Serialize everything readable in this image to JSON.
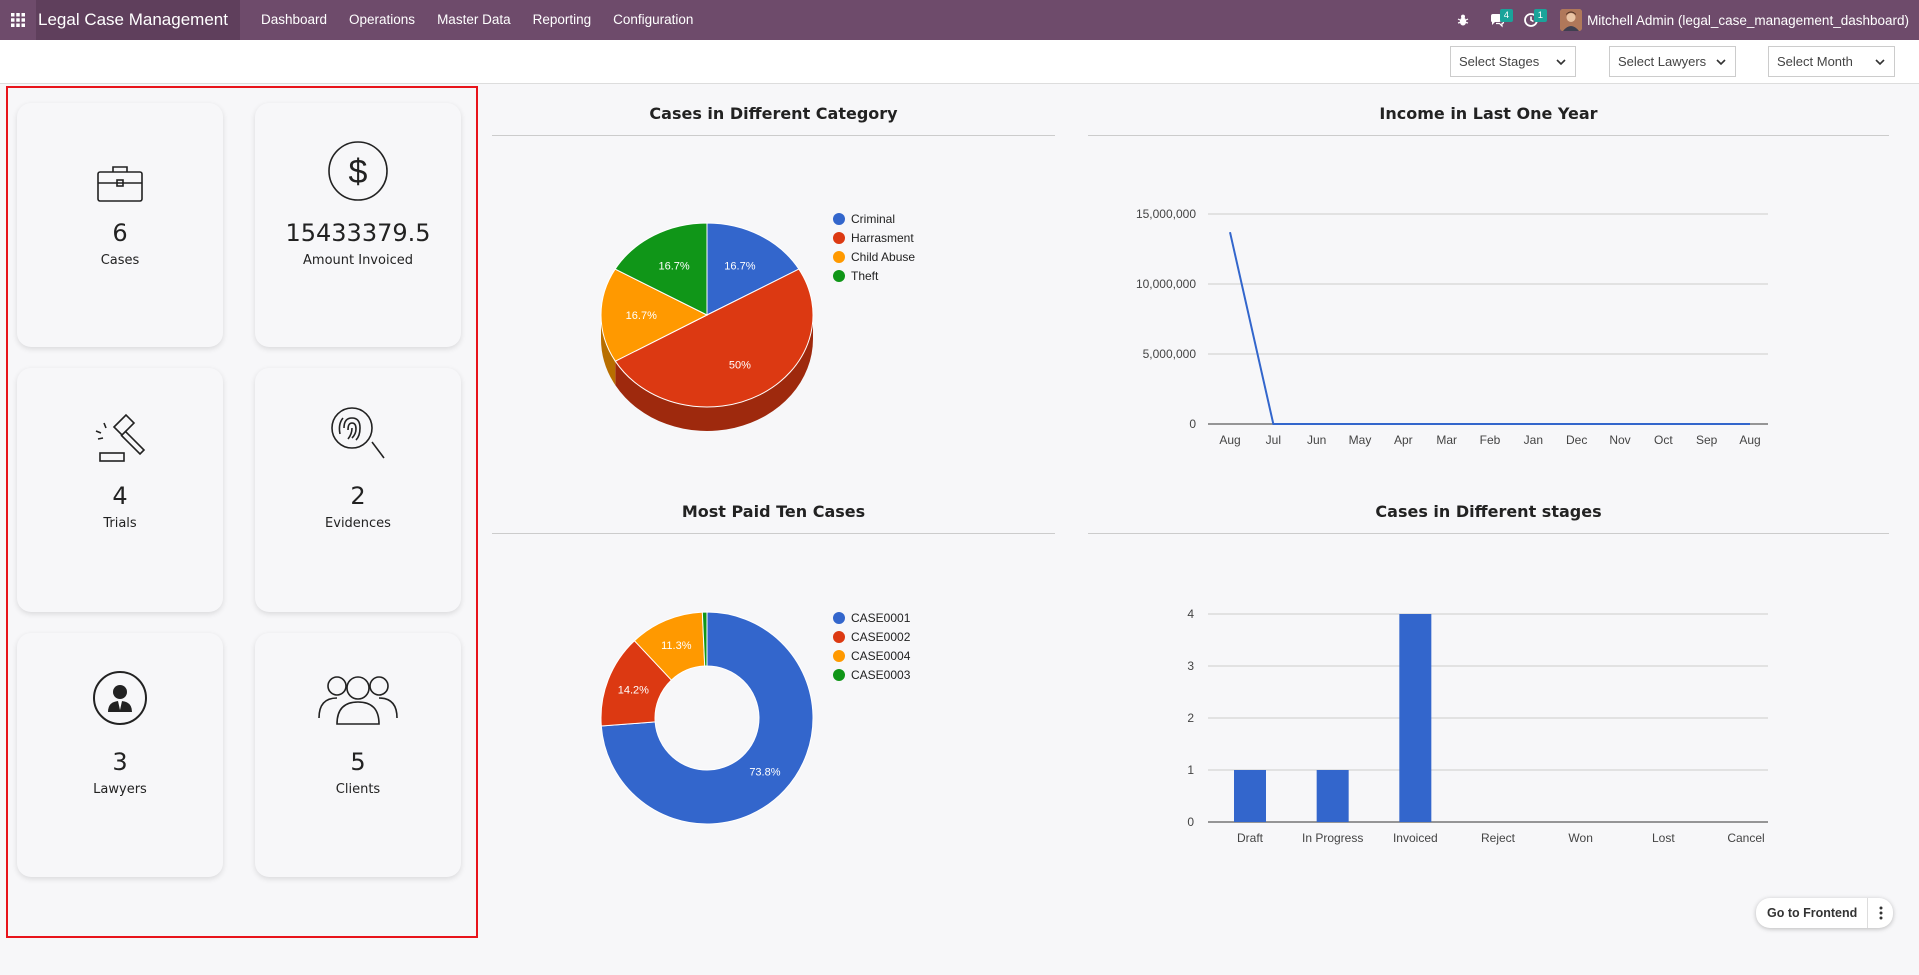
{
  "navbar": {
    "app_title": "Legal Case Management",
    "menu": [
      "Dashboard",
      "Operations",
      "Master Data",
      "Reporting",
      "Configuration"
    ],
    "messages_count": "4",
    "activities_count": "1",
    "user_name": "Mitchell Admin (legal_case_management_dashboard)"
  },
  "filters": {
    "stages": "Select Stages",
    "lawyers": "Select Lawyers",
    "month": "Select Month"
  },
  "kpis": [
    {
      "value": "6",
      "label": "Cases",
      "icon": "briefcase-icon"
    },
    {
      "value": "15433379.5",
      "label": "Amount Invoiced",
      "icon": "dollar-icon"
    },
    {
      "value": "4",
      "label": "Trials",
      "icon": "gavel-icon"
    },
    {
      "value": "2",
      "label": "Evidences",
      "icon": "fingerprint-icon"
    },
    {
      "value": "3",
      "label": "Lawyers",
      "icon": "lawyer-icon"
    },
    {
      "value": "5",
      "label": "Clients",
      "icon": "clients-icon"
    }
  ],
  "go_frontend": "Go to Frontend",
  "chart_data": [
    {
      "type": "pie",
      "title": "Cases in Different Category",
      "labels": [
        "Criminal",
        "Harrasment",
        "Child Abuse",
        "Theft"
      ],
      "values": [
        16.7,
        50,
        16.7,
        16.7
      ],
      "value_labels": [
        "16.7%",
        "50%",
        "16.7%",
        "16.7%"
      ],
      "colors": [
        "#3366cc",
        "#dc3912",
        "#ff9900",
        "#109618"
      ],
      "style": "3d",
      "legend": "right"
    },
    {
      "type": "line",
      "title": "Income in Last One Year",
      "categories": [
        "Aug",
        "Jul",
        "Jun",
        "May",
        "Apr",
        "Mar",
        "Feb",
        "Jan",
        "Dec",
        "Nov",
        "Oct",
        "Sep",
        "Aug"
      ],
      "values": [
        13700000,
        0,
        0,
        0,
        0,
        0,
        0,
        0,
        0,
        0,
        0,
        0,
        0
      ],
      "yticks": [
        "0",
        "5,000,000",
        "10,000,000",
        "15,000,000"
      ],
      "ylim": [
        0,
        15000000
      ],
      "color": "#3366cc",
      "grid": true
    },
    {
      "type": "pie",
      "title": "Most Paid Ten Cases",
      "labels": [
        "CASE0001",
        "CASE0002",
        "CASE0004",
        "CASE0003"
      ],
      "values": [
        73.8,
        14.2,
        11.3,
        0.7
      ],
      "value_labels": [
        "73.8%",
        "14.2%",
        "11.3%",
        ""
      ],
      "colors": [
        "#3366cc",
        "#dc3912",
        "#ff9900",
        "#109618"
      ],
      "style": "donut",
      "legend": "right"
    },
    {
      "type": "bar",
      "title": "Cases in Different stages",
      "categories": [
        "Draft",
        "In Progress",
        "Invoiced",
        "Reject",
        "Won",
        "Lost",
        "Cancel"
      ],
      "values": [
        1,
        1,
        4,
        0,
        0,
        0,
        0
      ],
      "yticks": [
        "0",
        "1",
        "2",
        "3",
        "4"
      ],
      "ylim": [
        0,
        4
      ],
      "color": "#3366cc",
      "grid": true
    }
  ]
}
